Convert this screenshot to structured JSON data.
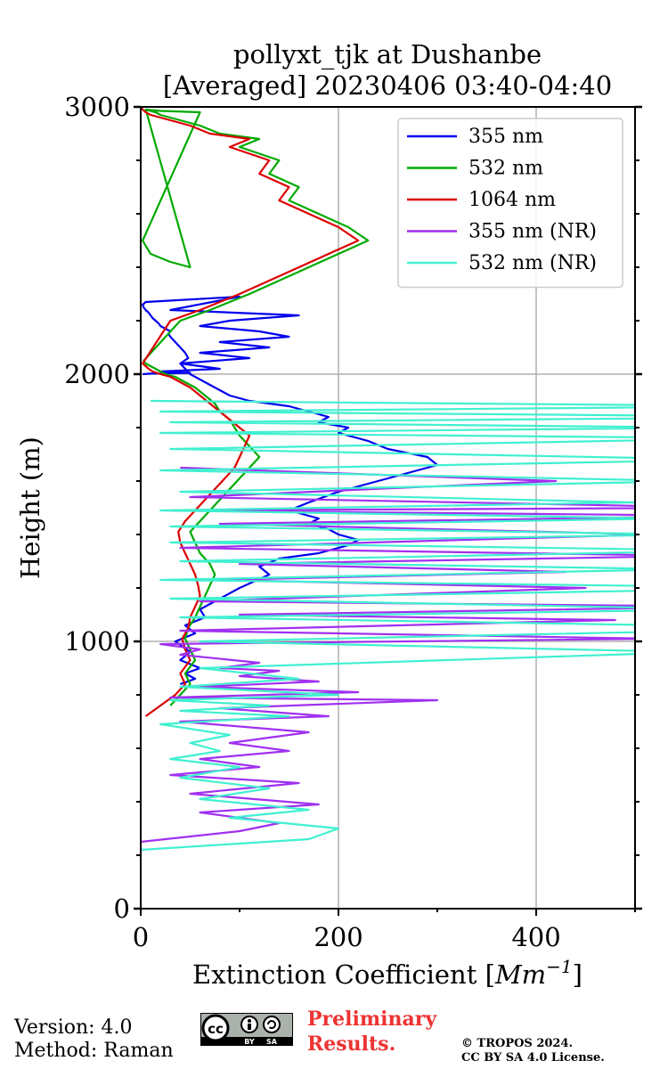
{
  "chart_data": {
    "type": "line",
    "title": "pollyxt_tjk at Dushanbe",
    "subtitle": "[Averaged] 20230406 03:40-04:40",
    "xlabel": "Extinction Coefficient",
    "xlabel_unit": "Mm",
    "xlabel_unit_exp": "−1",
    "ylabel": "Height (m)",
    "xlim": [
      0,
      500
    ],
    "ylim": [
      0,
      3000
    ],
    "x_ticks": [
      0,
      200,
      400
    ],
    "y_ticks": [
      0,
      1000,
      2000,
      3000
    ],
    "grid": true,
    "legend_position": "top-right",
    "series": [
      {
        "name": "355 nm",
        "color": "#0000ee",
        "x": [
          40,
          55,
          45,
          60,
          40,
          50,
          35,
          55,
          45,
          65,
          60,
          80,
          100,
          130,
          120,
          140,
          180,
          210,
          220,
          200,
          190,
          170,
          180,
          150,
          170,
          200,
          240,
          270,
          300,
          290,
          250,
          230,
          200,
          210,
          180,
          190,
          170,
          150,
          110,
          90,
          80,
          70,
          60,
          50,
          45,
          40,
          48,
          45,
          40,
          35,
          30,
          28,
          30,
          25,
          20,
          18,
          15,
          12,
          10,
          8,
          5,
          3,
          2,
          5,
          100,
          30,
          160,
          90,
          60,
          120,
          150,
          80,
          130,
          60,
          110,
          40,
          80,
          20,
          50,
          10,
          2
        ],
        "y": [
          840,
          860,
          880,
          900,
          930,
          960,
          1000,
          1030,
          1060,
          1090,
          1120,
          1160,
          1200,
          1250,
          1280,
          1310,
          1330,
          1360,
          1380,
          1400,
          1420,
          1440,
          1460,
          1490,
          1520,
          1560,
          1600,
          1630,
          1660,
          1690,
          1720,
          1750,
          1780,
          1800,
          1820,
          1840,
          1860,
          1880,
          1900,
          1920,
          1940,
          1960,
          1980,
          2000,
          2020,
          2040,
          2060,
          2080,
          2100,
          2120,
          2140,
          2150,
          2160,
          2170,
          2180,
          2190,
          2200,
          2210,
          2220,
          2230,
          2240,
          2250,
          2260,
          2270,
          2290,
          2240,
          2220,
          2200,
          2180,
          2160,
          2140,
          2120,
          2100,
          2080,
          2060,
          2040,
          2020,
          2010,
          2005,
          2002,
          2000
        ]
      },
      {
        "name": "532 nm",
        "color": "#00aa00",
        "x": [
          30,
          40,
          50,
          45,
          55,
          50,
          45,
          48,
          55,
          60,
          65,
          70,
          75,
          70,
          60,
          55,
          50,
          60,
          70,
          80,
          90,
          100,
          110,
          120,
          110,
          100,
          95,
          90,
          80,
          75,
          65,
          55,
          45,
          35,
          25,
          20,
          15,
          10,
          5,
          3,
          40,
          70,
          110,
          140,
          170,
          200,
          230,
          210,
          180,
          150,
          160,
          130,
          140,
          100,
          120,
          80,
          60,
          40,
          30,
          20,
          15,
          10,
          5,
          50,
          30,
          10,
          5,
          2,
          60,
          20,
          5
        ],
        "y": [
          760,
          800,
          840,
          880,
          930,
          970,
          1010,
          1050,
          1090,
          1130,
          1170,
          1210,
          1250,
          1290,
          1330,
          1370,
          1410,
          1450,
          1490,
          1530,
          1570,
          1610,
          1650,
          1690,
          1730,
          1770,
          1800,
          1830,
          1860,
          1890,
          1920,
          1950,
          1970,
          1990,
          2000,
          2010,
          2020,
          2030,
          2040,
          2050,
          2200,
          2240,
          2300,
          2350,
          2400,
          2450,
          2500,
          2550,
          2600,
          2650,
          2700,
          2750,
          2800,
          2850,
          2880,
          2900,
          2930,
          2950,
          2960,
          2970,
          2980,
          2985,
          2990,
          2400,
          2420,
          2450,
          2480,
          2500,
          2980,
          2985,
          2990
        ]
      },
      {
        "name": "1064 nm",
        "color": "#dd0000",
        "x": [
          5,
          20,
          35,
          45,
          40,
          50,
          45,
          42,
          48,
          50,
          55,
          60,
          58,
          55,
          50,
          45,
          40,
          38,
          45,
          55,
          65,
          75,
          85,
          95,
          100,
          105,
          110,
          100,
          90,
          80,
          70,
          60,
          50,
          40,
          30,
          20,
          12,
          8,
          5,
          2,
          30,
          60,
          100,
          130,
          160,
          190,
          220,
          200,
          170,
          140,
          150,
          120,
          130,
          90,
          110,
          70,
          50,
          30,
          20,
          10,
          5,
          2,
          0
        ],
        "y": [
          720,
          760,
          800,
          840,
          880,
          930,
          970,
          1010,
          1050,
          1090,
          1130,
          1170,
          1210,
          1250,
          1290,
          1330,
          1370,
          1410,
          1450,
          1490,
          1530,
          1570,
          1610,
          1650,
          1690,
          1730,
          1770,
          1800,
          1830,
          1860,
          1890,
          1920,
          1950,
          1970,
          1990,
          2000,
          2010,
          2020,
          2030,
          2040,
          2200,
          2240,
          2300,
          2350,
          2400,
          2450,
          2500,
          2550,
          2600,
          2650,
          2700,
          2750,
          2800,
          2850,
          2880,
          2900,
          2930,
          2950,
          2960,
          2970,
          2980,
          2990,
          3000
        ]
      },
      {
        "name": "355 nm (NR)",
        "color": "#a030f0",
        "x": [
          0,
          100,
          140,
          60,
          180,
          50,
          160,
          30,
          120,
          60,
          150,
          90,
          170,
          40,
          190,
          80,
          300,
          30,
          220,
          60,
          180,
          100,
          140,
          80,
          120,
          40,
          60,
          20,
          520,
          40,
          480,
          100,
          600,
          60,
          450,
          80,
          430,
          100,
          560,
          40,
          520,
          80,
          600,
          30,
          600,
          50,
          420,
          40
        ],
        "y": [
          250,
          290,
          320,
          360,
          390,
          430,
          470,
          500,
          530,
          560,
          590,
          620,
          660,
          700,
          720,
          750,
          780,
          790,
          810,
          830,
          850,
          870,
          890,
          900,
          920,
          950,
          970,
          990,
          1010,
          1040,
          1080,
          1100,
          1130,
          1150,
          1200,
          1230,
          1260,
          1290,
          1320,
          1350,
          1400,
          1440,
          1470,
          1490,
          1500,
          1540,
          1600,
          1650
        ]
      },
      {
        "name": "532 nm (NR)",
        "color": "#40f0d0",
        "x": [
          0,
          170,
          200,
          90,
          170,
          60,
          130,
          40,
          100,
          30,
          80,
          50,
          90,
          20,
          150,
          40,
          130,
          30,
          200,
          40,
          160,
          60,
          560,
          60,
          700,
          40,
          600,
          30,
          680,
          20,
          550,
          40,
          600,
          30,
          560,
          30,
          540,
          20,
          500,
          40,
          560,
          20,
          600,
          30,
          620,
          20,
          580,
          30,
          700,
          20,
          650,
          10
        ],
        "y": [
          220,
          260,
          300,
          340,
          370,
          410,
          450,
          490,
          530,
          560,
          590,
          620,
          650,
          690,
          720,
          740,
          760,
          780,
          800,
          830,
          860,
          900,
          960,
          1000,
          1050,
          1090,
          1120,
          1160,
          1200,
          1230,
          1270,
          1300,
          1340,
          1370,
          1400,
          1430,
          1460,
          1490,
          1520,
          1560,
          1600,
          1640,
          1680,
          1720,
          1760,
          1780,
          1800,
          1820,
          1840,
          1860,
          1880,
          1900
        ]
      }
    ]
  },
  "footer": {
    "version": "Version: 4.0",
    "method": "Method: Raman",
    "preliminary_line1": "Preliminary",
    "preliminary_line2": "Results.",
    "copyright_line1": "© TROPOS 2024.",
    "copyright_line2": "CC BY SA 4.0 License.",
    "cc_logo_text": "cc",
    "cc_by": "BY",
    "cc_sa": "SA"
  },
  "colors": {
    "preliminary": "#ee3333",
    "grid": "#b0b0b0"
  }
}
